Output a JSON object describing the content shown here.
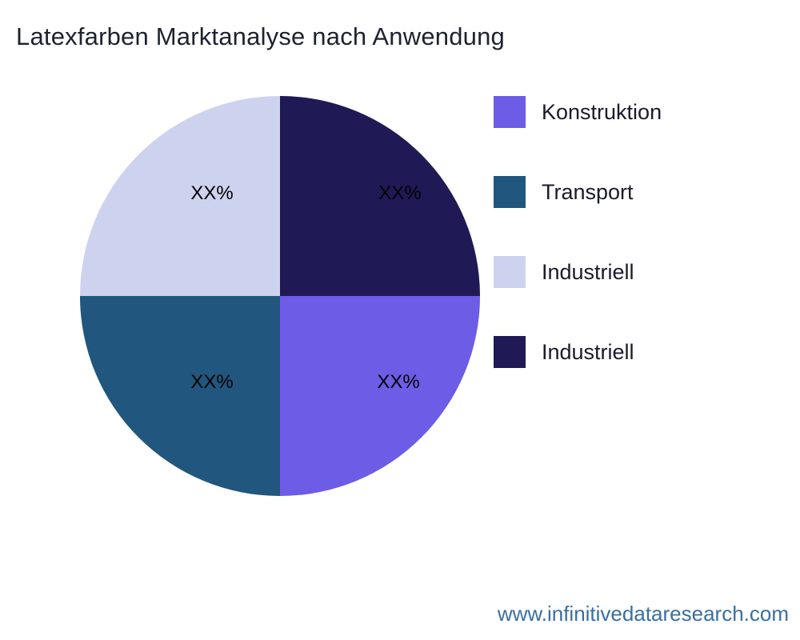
{
  "page": {
    "title": "Latexfarben Marktanalyse nach Anwendung",
    "watermark": "www.infinitivedataresearch.com",
    "watermark_color": "#3a6f9f",
    "background": "#ffffff"
  },
  "chart_data": {
    "type": "pie",
    "title": "Latexfarben Marktanalyse nach Anwendung",
    "legend_position": "right",
    "value_format": "percent-placeholder",
    "slices": [
      {
        "label": "Konstruktion",
        "value": 25,
        "display": "XX%",
        "color": "#6d5ce6",
        "position": "bottom-right"
      },
      {
        "label": "Transport",
        "value": 25,
        "display": "XX%",
        "color": "#21577e",
        "position": "bottom-left"
      },
      {
        "label": "Industriell",
        "value": 25,
        "display": "XX%",
        "color": "#cdd2ef",
        "position": "top-left"
      },
      {
        "label": "Industriell",
        "value": 25,
        "display": "XX%",
        "color": "#1f1a55",
        "position": "top-right"
      }
    ]
  }
}
